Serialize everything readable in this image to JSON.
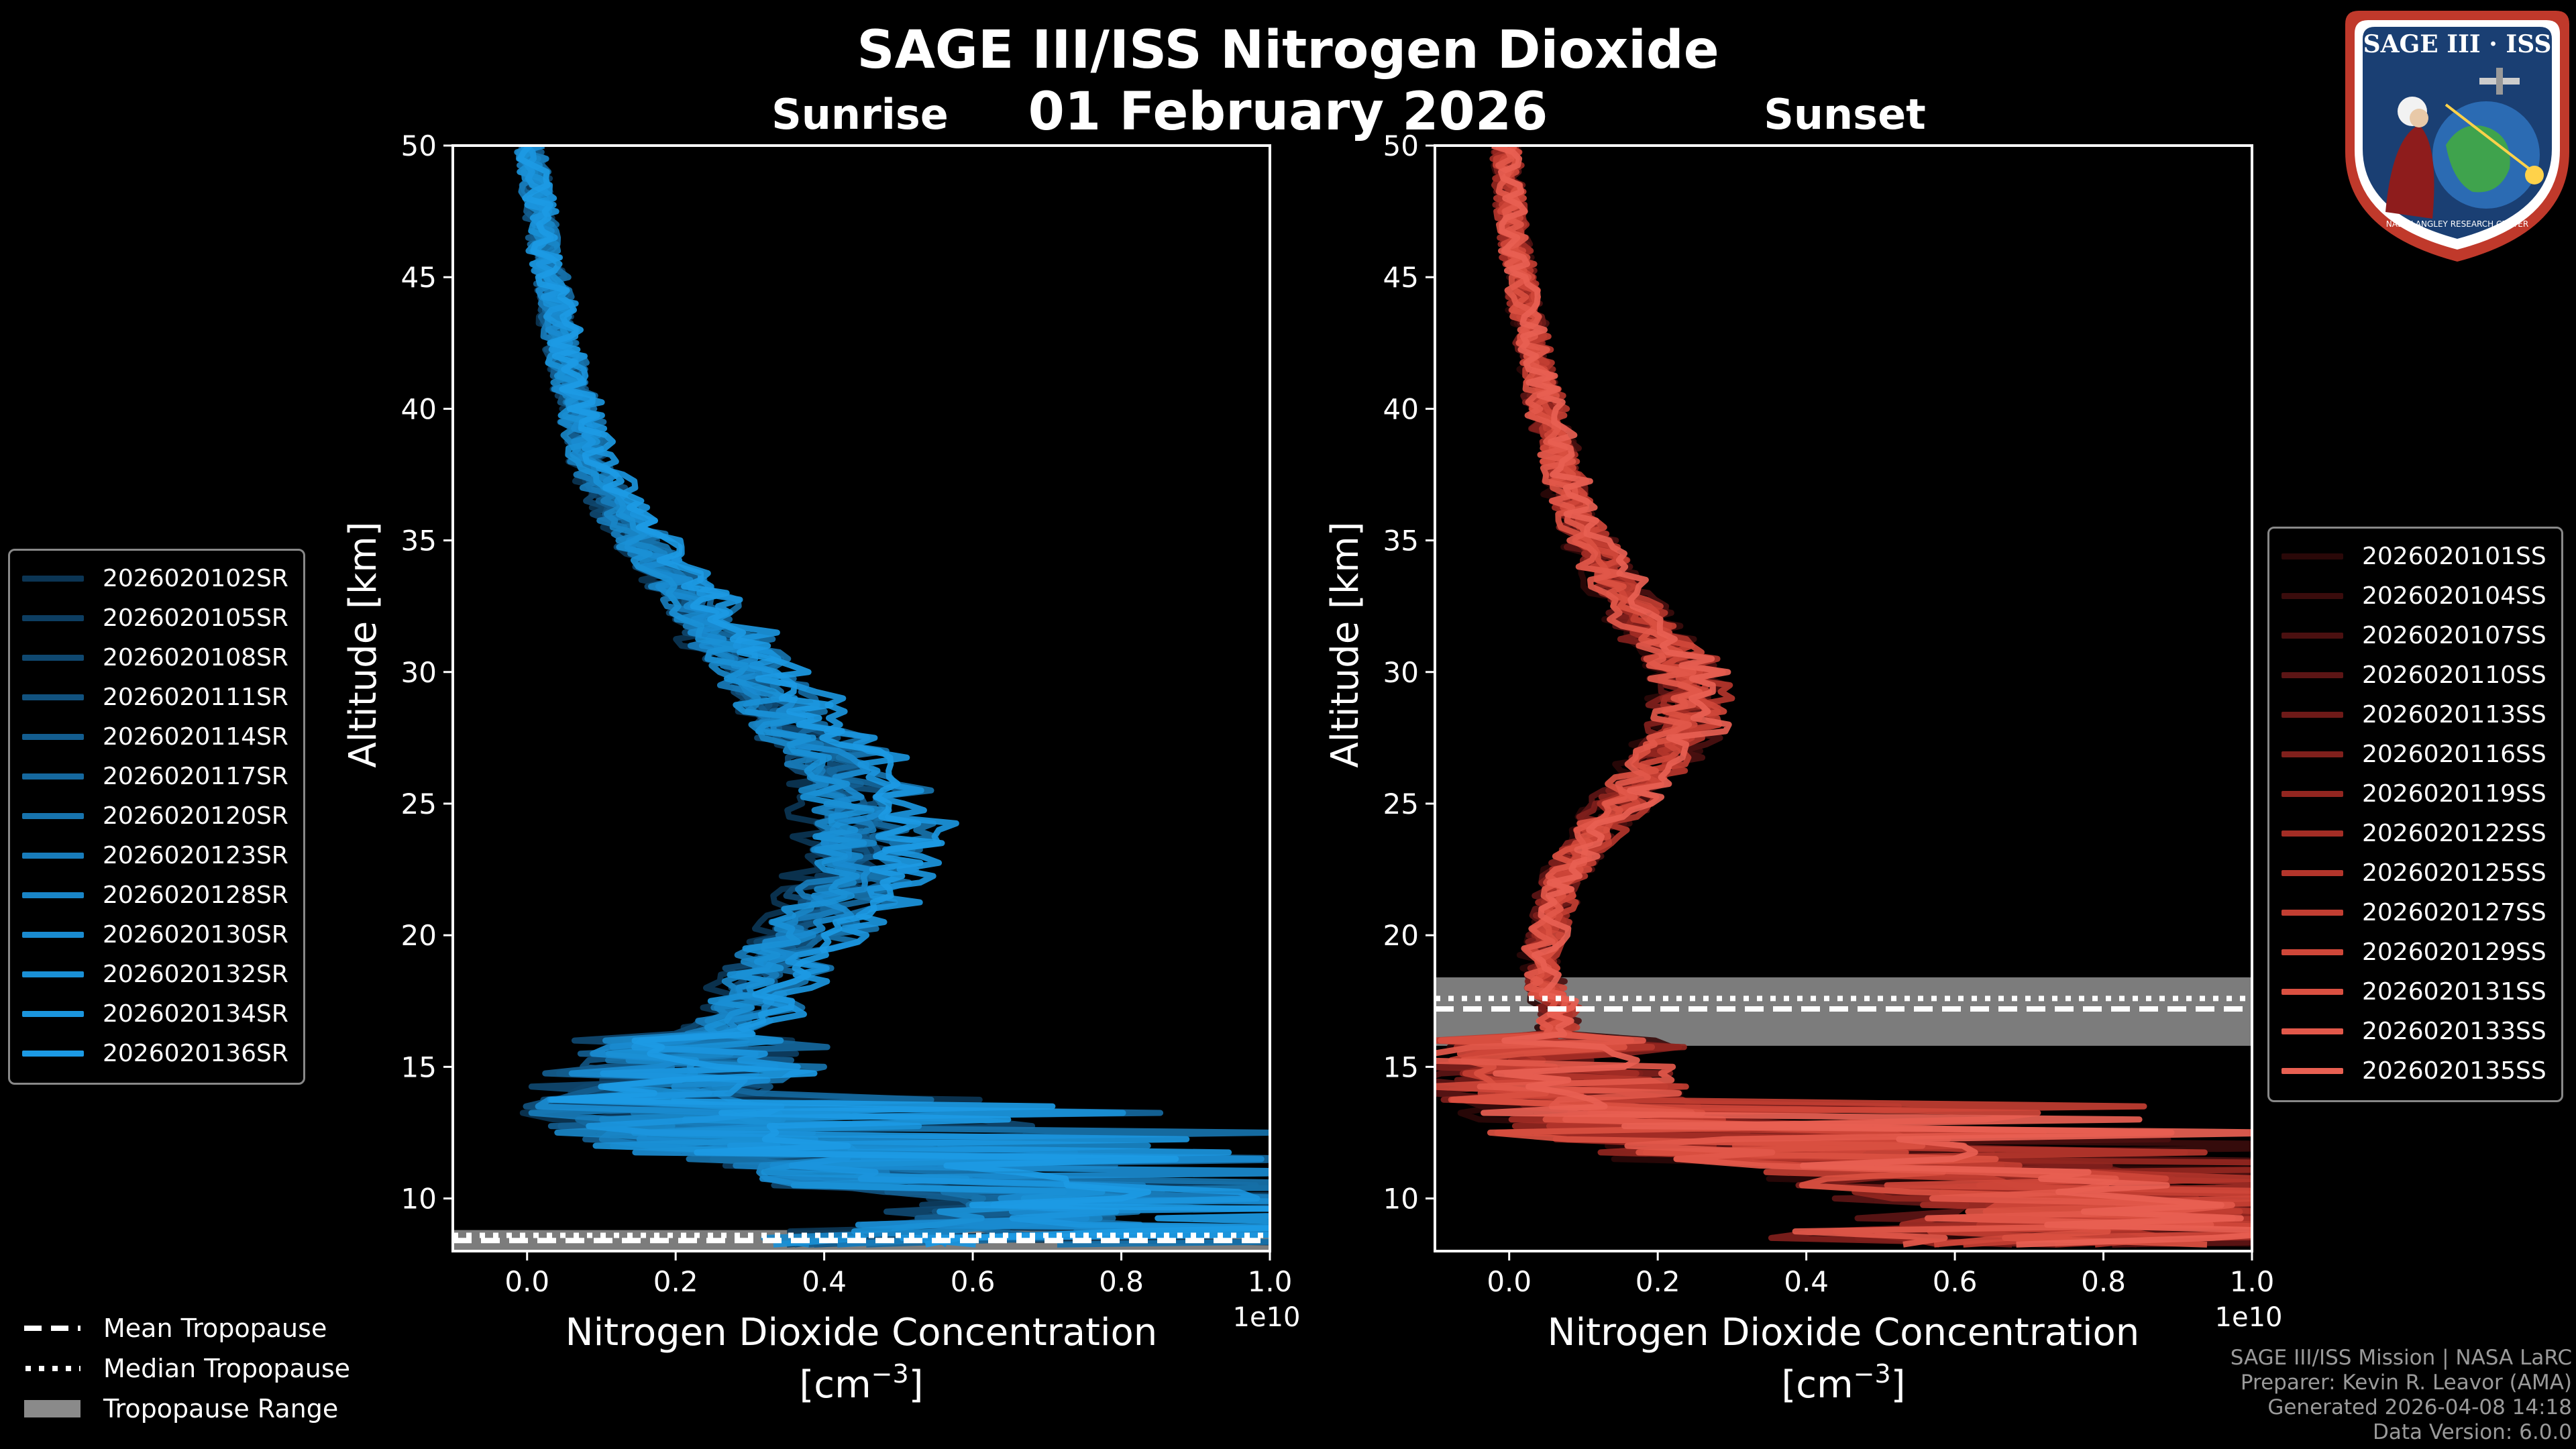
{
  "title": "SAGE III/ISS Nitrogen Dioxide",
  "date": "01 February 2026",
  "panels": {
    "sunrise": {
      "title": "Sunrise"
    },
    "sunset": {
      "title": "Sunset"
    }
  },
  "tropopause_legend": {
    "mean": "Mean Tropopause",
    "median": "Median Tropopause",
    "range": "Tropopause Range"
  },
  "footer": {
    "line1": "SAGE III/ISS Mission | NASA LaRC",
    "line2": "Preparer: Kevin R. Leavor (AMA)",
    "line3": "Generated 2026-04-08 14:18",
    "line4": "Data Version: 6.0.0"
  },
  "logo": {
    "text": "SAGE III · ISS",
    "subtext": "NASA LANGLEY RESEARCH CENTER",
    "colors": {
      "ring": "#c0392b",
      "bg": "#1a3f73",
      "globe": "#3fa34d"
    }
  },
  "colors": {
    "sunrise_series": "#1a8fd6",
    "sunset_series": "#e8574a",
    "axes": "#ffffff",
    "tropopause_range": "#8a8a8a"
  },
  "chart_data": [
    {
      "type": "line",
      "title": "Sunrise",
      "xlabel": "Nitrogen Dioxide Concentration",
      "xlabel_units": "[cm",
      "xlabel_exponent": "−3",
      "xlabel_close": "]",
      "ylabel": "Altitude [km]",
      "x_multiplier_label": "1e10",
      "xlim": [
        -0.1,
        1.0
      ],
      "ylim": [
        8,
        50
      ],
      "xticks": [
        0.0,
        0.2,
        0.4,
        0.6,
        0.8,
        1.0
      ],
      "xtick_labels": [
        "0.0",
        "0.2",
        "0.4",
        "0.6",
        "0.8",
        "1.0"
      ],
      "yticks": [
        10,
        15,
        20,
        25,
        30,
        35,
        40,
        45,
        50
      ],
      "grid": false,
      "legend_placement": "left",
      "series_names": [
        "2026020102SR",
        "2026020105SR",
        "2026020108SR",
        "2026020111SR",
        "2026020114SR",
        "2026020117SR",
        "2026020120SR",
        "2026020123SR",
        "2026020128SR",
        "2026020130SR",
        "2026020132SR",
        "2026020134SR",
        "2026020136SR"
      ],
      "series_colors": [
        "#0b3554",
        "#0d3e62",
        "#0f4870",
        "#11527f",
        "#135d8f",
        "#15689e",
        "#1773ad",
        "#187cbb",
        "#1985c7",
        "#1a8bd0",
        "#1a90d6",
        "#1b95dd",
        "#1c9ae4"
      ],
      "profile_altitudes": [
        8.5,
        9,
        10,
        11,
        12,
        13,
        14,
        15,
        16,
        17,
        18,
        19,
        20,
        21,
        22,
        23,
        24,
        25,
        26,
        27,
        28,
        29,
        30,
        31,
        32,
        33,
        34,
        35,
        36,
        38,
        40,
        42,
        44,
        46,
        48,
        50
      ],
      "profile_mean_values": [
        0.52,
        0.65,
        0.72,
        0.45,
        0.27,
        0.18,
        0.16,
        0.2,
        0.25,
        0.3,
        0.32,
        0.34,
        0.38,
        0.42,
        0.45,
        0.46,
        0.47,
        0.46,
        0.44,
        0.41,
        0.37,
        0.34,
        0.31,
        0.28,
        0.25,
        0.22,
        0.19,
        0.16,
        0.13,
        0.09,
        0.07,
        0.05,
        0.04,
        0.025,
        0.015,
        0.005
      ],
      "tropopause_mean": 8.4,
      "tropopause_median": 8.6,
      "tropopause_range": [
        8.0,
        8.8
      ]
    },
    {
      "type": "line",
      "title": "Sunset",
      "xlabel": "Nitrogen Dioxide Concentration",
      "xlabel_units": "[cm",
      "xlabel_exponent": "−3",
      "xlabel_close": "]",
      "ylabel": "Altitude [km]",
      "x_multiplier_label": "1e10",
      "xlim": [
        -0.1,
        1.0
      ],
      "ylim": [
        8,
        50
      ],
      "xticks": [
        0.0,
        0.2,
        0.4,
        0.6,
        0.8,
        1.0
      ],
      "xtick_labels": [
        "0.0",
        "0.2",
        "0.4",
        "0.6",
        "0.8",
        "1.0"
      ],
      "yticks": [
        10,
        15,
        20,
        25,
        30,
        35,
        40,
        45,
        50
      ],
      "grid": false,
      "legend_placement": "right",
      "series_names": [
        "2026020101SS",
        "2026020104SS",
        "2026020107SS",
        "2026020110SS",
        "2026020113SS",
        "2026020116SS",
        "2026020119SS",
        "2026020122SS",
        "2026020125SS",
        "2026020127SS",
        "2026020129SS",
        "2026020131SS",
        "2026020133SS",
        "2026020135SS"
      ],
      "series_colors": [
        "#2a0808",
        "#3a0c0c",
        "#4b1010",
        "#5c1515",
        "#6e1a18",
        "#80201c",
        "#922620",
        "#a32d25",
        "#b3352b",
        "#c23e32",
        "#cf4739",
        "#da5041",
        "#e2584a",
        "#e86052"
      ],
      "profile_altitudes": [
        8.5,
        9,
        10,
        11,
        12,
        13,
        14,
        15,
        16,
        17,
        18,
        19,
        20,
        21,
        22,
        23,
        24,
        25,
        26,
        27,
        28,
        29,
        30,
        31,
        32,
        33,
        34,
        35,
        36,
        38,
        40,
        42,
        44,
        46,
        48,
        50
      ],
      "profile_mean_values": [
        0.7,
        0.8,
        0.82,
        0.6,
        0.35,
        0.12,
        0.06,
        0.05,
        0.06,
        0.07,
        0.05,
        0.04,
        0.05,
        0.06,
        0.07,
        0.09,
        0.12,
        0.15,
        0.18,
        0.21,
        0.24,
        0.25,
        0.24,
        0.21,
        0.18,
        0.15,
        0.13,
        0.11,
        0.09,
        0.07,
        0.05,
        0.035,
        0.02,
        0.01,
        0.0,
        -0.005
      ],
      "tropopause_mean": 17.2,
      "tropopause_median": 17.6,
      "tropopause_range": [
        15.8,
        18.4
      ]
    }
  ]
}
